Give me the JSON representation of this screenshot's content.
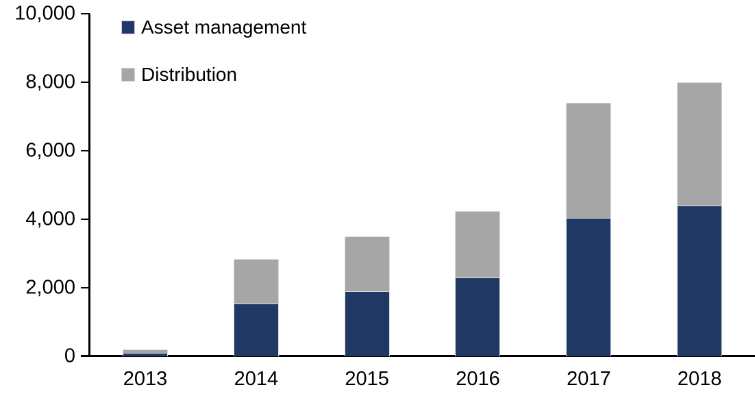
{
  "chart_data": {
    "type": "bar",
    "stacked": true,
    "title": "",
    "xlabel": "",
    "ylabel": "",
    "categories": [
      "2013",
      "2014",
      "2015",
      "2016",
      "2017",
      "2018"
    ],
    "series": [
      {
        "name": "Asset management",
        "color": "#1f3864",
        "values": [
          100,
          1550,
          1900,
          2300,
          4050,
          4400
        ]
      },
      {
        "name": "Distribution",
        "color": "#a6a6a6",
        "values": [
          100,
          1300,
          1600,
          1950,
          3350,
          3600
        ]
      }
    ],
    "stack_totals": [
      200,
      2850,
      3500,
      4250,
      7400,
      8000
    ],
    "ylim": [
      0,
      10000
    ],
    "y_tick_values": [
      0,
      2000,
      4000,
      6000,
      8000,
      10000
    ],
    "y_tick_labels": [
      "0",
      "2,000",
      "4,000",
      "6,000",
      "8,000",
      "10,000"
    ],
    "grid": false,
    "legend_position": "top-left-inside"
  },
  "colors": {
    "axis": "#000000",
    "background": "#ffffff",
    "asset_management": "#1f3864",
    "distribution": "#a6a6a6"
  }
}
